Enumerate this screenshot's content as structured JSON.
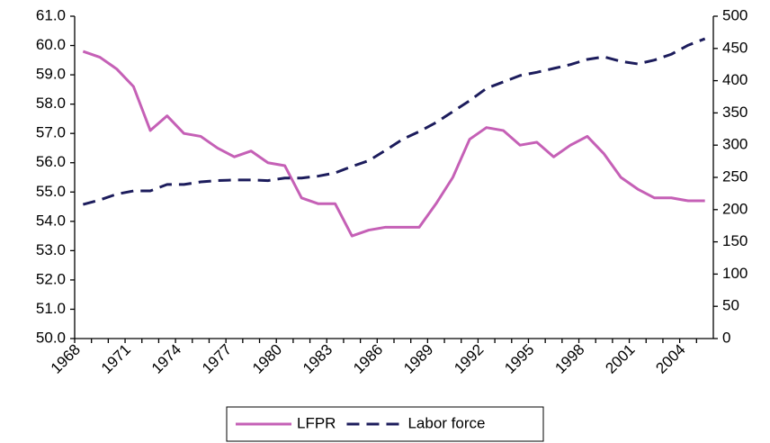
{
  "chart_data": {
    "type": "line",
    "categories": [
      "1968",
      null,
      null,
      "1971",
      null,
      null,
      "1974",
      null,
      null,
      "1977",
      null,
      null,
      "1980",
      null,
      null,
      "1983",
      null,
      null,
      "1986",
      null,
      null,
      "1989",
      null,
      null,
      "1992",
      null,
      null,
      "1995",
      null,
      null,
      "1998",
      null,
      null,
      "2001",
      null,
      null,
      "2004",
      null
    ],
    "series": [
      {
        "name": "LFPR",
        "color": "#c560b6",
        "style": "solid",
        "axis": "y",
        "values": [
          59.8,
          59.6,
          59.2,
          58.6,
          57.1,
          57.6,
          57.0,
          56.9,
          56.5,
          56.2,
          56.4,
          56.0,
          55.9,
          54.8,
          54.6,
          54.6,
          53.5,
          53.7,
          53.8,
          53.8,
          53.8,
          54.6,
          55.5,
          56.8,
          57.2,
          57.1,
          56.6,
          56.7,
          56.2,
          56.6,
          56.9,
          56.3,
          55.5,
          55.1,
          54.8,
          54.8,
          54.7,
          54.7
        ]
      },
      {
        "name": "Labor force",
        "color": "#1c1c5c",
        "style": "dashed",
        "axis": "y2",
        "values": [
          208,
          215,
          224,
          229,
          229,
          239,
          239,
          243,
          245,
          246,
          246,
          245,
          249,
          249,
          252,
          257,
          267,
          276,
          292,
          309,
          321,
          335,
          352,
          369,
          388,
          398,
          408,
          413,
          419,
          425,
          433,
          437,
          430,
          426,
          432,
          441,
          455,
          465
        ]
      }
    ],
    "ylim": [
      50,
      61
    ],
    "yticks": [
      {
        "value": 50,
        "label": "50.0"
      },
      {
        "value": 51,
        "label": "51.0"
      },
      {
        "value": 52,
        "label": "52.0"
      },
      {
        "value": 53,
        "label": "53.0"
      },
      {
        "value": 54,
        "label": "54.0"
      },
      {
        "value": 55,
        "label": "55.0"
      },
      {
        "value": 56,
        "label": "56.0"
      },
      {
        "value": 57,
        "label": "57.0"
      },
      {
        "value": 58,
        "label": "58.0"
      },
      {
        "value": 59,
        "label": "59.0"
      },
      {
        "value": 60,
        "label": "60.0"
      },
      {
        "value": 61,
        "label": "61.0"
      }
    ],
    "y2lim": [
      0,
      500
    ],
    "y2ticks": [
      0,
      50,
      100,
      150,
      200,
      250,
      300,
      350,
      400,
      450,
      500
    ],
    "grid": false,
    "legend": "bottom"
  }
}
